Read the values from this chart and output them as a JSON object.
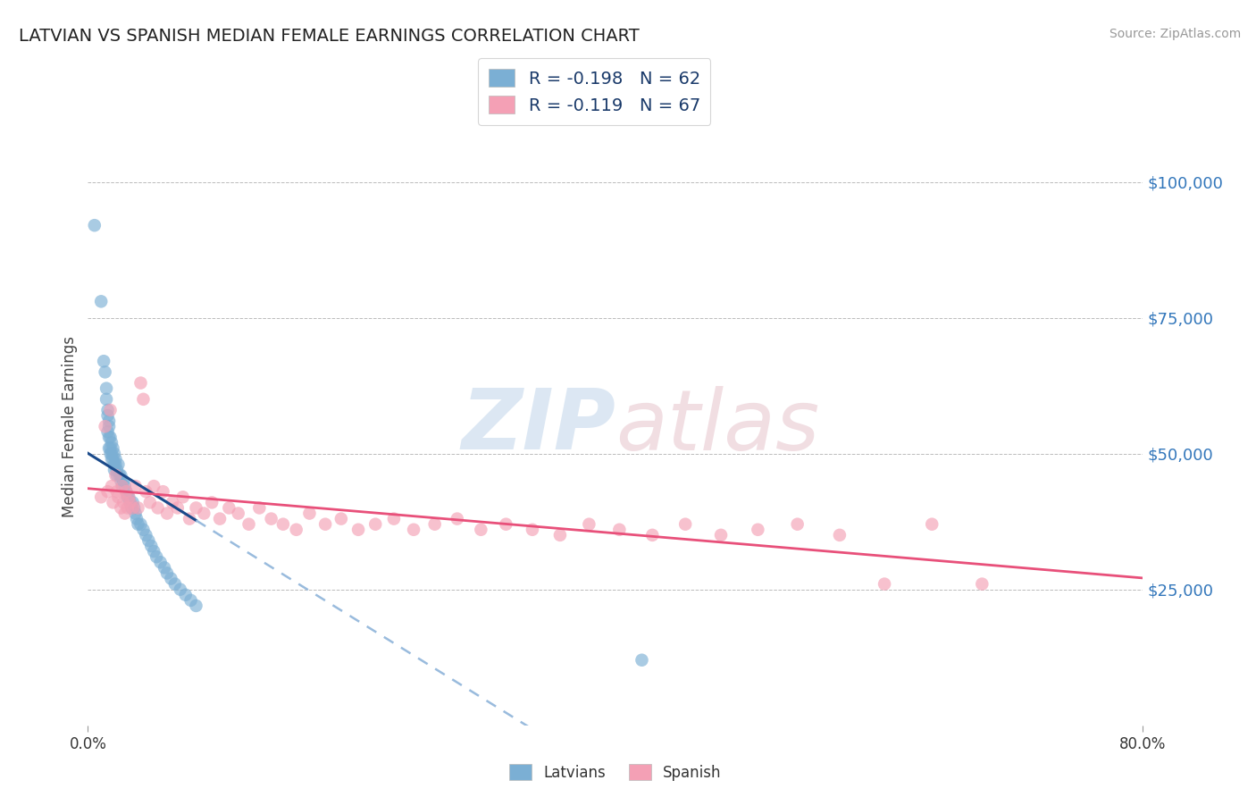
{
  "title": "LATVIAN VS SPANISH MEDIAN FEMALE EARNINGS CORRELATION CHART",
  "source": "Source: ZipAtlas.com",
  "ylabel": "Median Female Earnings",
  "ytick_labels": [
    "$25,000",
    "$50,000",
    "$75,000",
    "$100,000"
  ],
  "ytick_values": [
    25000,
    50000,
    75000,
    100000
  ],
  "ylim": [
    0,
    110000
  ],
  "xlim": [
    0.0,
    0.8
  ],
  "legend_latvian": "R = -0.198   N = 62",
  "legend_spanish": "R = -0.119   N = 67",
  "legend_label_latvian": "Latvians",
  "legend_label_spanish": "Spanish",
  "latvian_color": "#7BAFD4",
  "spanish_color": "#F4A0B5",
  "latvian_line_color": "#1A4A8A",
  "spanish_line_color": "#E8507A",
  "dashed_line_color": "#99BBDD",
  "watermark_text": "ZIPatlas",
  "watermark_color": "#C8D8E8",
  "background_color": "#FFFFFF",
  "grid_color": "#BBBBBB",
  "title_color": "#222222",
  "axis_label_color": "#444444",
  "ytick_color": "#3377BB",
  "latvian_x": [
    0.005,
    0.01,
    0.012,
    0.013,
    0.014,
    0.014,
    0.015,
    0.015,
    0.015,
    0.016,
    0.016,
    0.016,
    0.016,
    0.017,
    0.017,
    0.017,
    0.018,
    0.018,
    0.018,
    0.019,
    0.019,
    0.02,
    0.02,
    0.02,
    0.021,
    0.021,
    0.022,
    0.022,
    0.023,
    0.024,
    0.025,
    0.025,
    0.026,
    0.027,
    0.028,
    0.029,
    0.03,
    0.031,
    0.032,
    0.033,
    0.034,
    0.035,
    0.036,
    0.037,
    0.038,
    0.04,
    0.042,
    0.044,
    0.046,
    0.048,
    0.05,
    0.052,
    0.055,
    0.058,
    0.06,
    0.063,
    0.066,
    0.07,
    0.074,
    0.078,
    0.082,
    0.42
  ],
  "latvian_y": [
    92000,
    78000,
    67000,
    65000,
    62000,
    60000,
    58000,
    57000,
    54000,
    56000,
    55000,
    53000,
    51000,
    53000,
    51000,
    50000,
    52000,
    50000,
    49000,
    51000,
    49000,
    50000,
    48000,
    47000,
    49000,
    48000,
    47000,
    46000,
    48000,
    46000,
    46000,
    45000,
    44000,
    45000,
    44000,
    43000,
    42000,
    42000,
    41000,
    40000,
    41000,
    40000,
    39000,
    38000,
    37000,
    37000,
    36000,
    35000,
    34000,
    33000,
    32000,
    31000,
    30000,
    29000,
    28000,
    27000,
    26000,
    25000,
    24000,
    23000,
    22000,
    12000
  ],
  "spanish_x": [
    0.01,
    0.013,
    0.015,
    0.017,
    0.018,
    0.019,
    0.021,
    0.022,
    0.023,
    0.025,
    0.026,
    0.027,
    0.028,
    0.029,
    0.03,
    0.031,
    0.032,
    0.034,
    0.036,
    0.038,
    0.04,
    0.042,
    0.044,
    0.047,
    0.05,
    0.053,
    0.057,
    0.06,
    0.064,
    0.068,
    0.072,
    0.077,
    0.082,
    0.088,
    0.094,
    0.1,
    0.107,
    0.114,
    0.122,
    0.13,
    0.139,
    0.148,
    0.158,
    0.168,
    0.18,
    0.192,
    0.205,
    0.218,
    0.232,
    0.247,
    0.263,
    0.28,
    0.298,
    0.317,
    0.337,
    0.358,
    0.38,
    0.403,
    0.428,
    0.453,
    0.48,
    0.508,
    0.538,
    0.57,
    0.604,
    0.64,
    0.678
  ],
  "spanish_y": [
    42000,
    55000,
    43000,
    58000,
    44000,
    41000,
    46000,
    43000,
    42000,
    40000,
    44000,
    41000,
    39000,
    43000,
    40000,
    42000,
    41000,
    40000,
    44000,
    40000,
    63000,
    60000,
    43000,
    41000,
    44000,
    40000,
    43000,
    39000,
    41000,
    40000,
    42000,
    38000,
    40000,
    39000,
    41000,
    38000,
    40000,
    39000,
    37000,
    40000,
    38000,
    37000,
    36000,
    39000,
    37000,
    38000,
    36000,
    37000,
    38000,
    36000,
    37000,
    38000,
    36000,
    37000,
    36000,
    35000,
    37000,
    36000,
    35000,
    37000,
    35000,
    36000,
    37000,
    35000,
    26000,
    37000,
    26000
  ]
}
